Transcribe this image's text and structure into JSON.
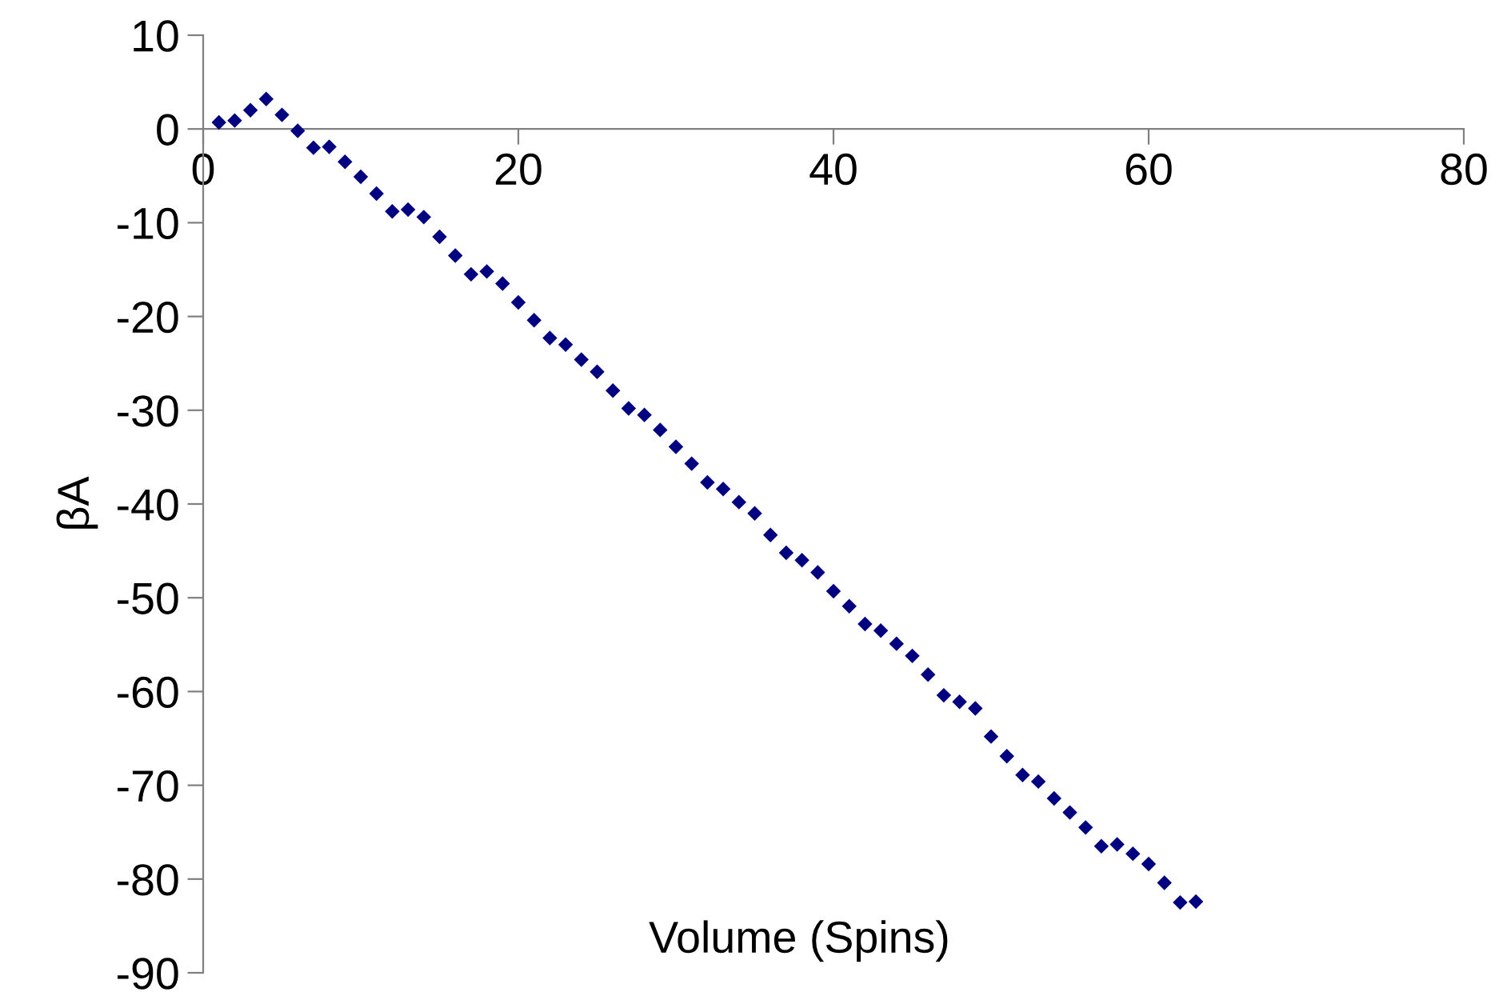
{
  "chart_data": {
    "type": "scatter",
    "xlabel": "Volume (Spins)",
    "ylabel": "βA",
    "x": [
      1,
      2,
      3,
      4,
      5,
      6,
      7,
      8,
      9,
      10,
      11,
      12,
      13,
      14,
      15,
      16,
      17,
      18,
      19,
      20,
      21,
      22,
      23,
      24,
      25,
      26,
      27,
      28,
      29,
      30,
      31,
      32,
      33,
      34,
      35,
      36,
      37,
      38,
      39,
      40,
      41,
      42,
      43,
      44,
      45,
      46,
      47,
      48,
      49,
      50,
      51,
      52,
      53,
      54,
      55,
      56,
      57,
      58,
      59,
      60,
      61,
      62,
      63
    ],
    "series": [
      {
        "color": "#000080",
        "values": [
          0.7,
          0.9,
          2.0,
          3.2,
          1.5,
          -0.2,
          -2.0,
          -1.9,
          -3.5,
          -5.1,
          -6.9,
          -8.8,
          -8.6,
          -9.4,
          -11.5,
          -13.5,
          -15.5,
          -15.2,
          -16.5,
          -18.5,
          -20.4,
          -22.3,
          -23.0,
          -24.6,
          -25.9,
          -27.9,
          -29.8,
          -30.5,
          -32.1,
          -33.9,
          -35.7,
          -37.7,
          -38.4,
          -39.8,
          -41.0,
          -43.3,
          -45.2,
          -46.0,
          -47.3,
          -49.3,
          -50.9,
          -52.8,
          -53.5,
          -54.9,
          -56.2,
          -58.2,
          -60.4,
          -61.1,
          -61.8,
          -64.8,
          -66.9,
          -68.9,
          -69.6,
          -71.4,
          -72.9,
          -74.5,
          -76.5,
          -76.3,
          -77.3,
          -78.4,
          -80.4,
          -82.5,
          -82.4
        ]
      }
    ],
    "xlim": [
      0,
      80
    ],
    "xticks": [
      0,
      20,
      40,
      60,
      80
    ],
    "ylim": [
      -90,
      10
    ],
    "yticks": [
      -90,
      -80,
      -70,
      -60,
      -50,
      -40,
      -30,
      -20,
      -10,
      0,
      10
    ],
    "marker": "diamond",
    "grid": false,
    "legend": false
  }
}
